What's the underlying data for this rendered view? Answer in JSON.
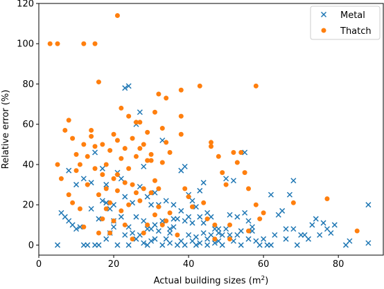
{
  "chart_data": {
    "type": "scatter",
    "xlabel": "Actual building sizes (m$^2$)",
    "xlabel_main": "Actual building sizes (m",
    "xlabel_sup": "2",
    "xlabel_tail": ")",
    "ylabel": "Relative error (%)",
    "xlim": [
      0,
      92
    ],
    "ylim": [
      -5,
      120
    ],
    "xticks": [
      0,
      20,
      40,
      60,
      80
    ],
    "xtick_labels": [
      "0",
      "20",
      "40",
      "60",
      "80"
    ],
    "yticks": [
      0,
      20,
      40,
      60,
      80,
      100,
      120
    ],
    "ytick_labels": [
      "0",
      "20",
      "40",
      "60",
      "80",
      "100",
      "120"
    ],
    "grid": false,
    "legend_position": "top-right",
    "series": [
      {
        "name": "Metal",
        "marker": "x",
        "color": "#1f77b4",
        "points": [
          [
            5,
            0
          ],
          [
            6,
            16
          ],
          [
            7,
            14
          ],
          [
            8,
            12
          ],
          [
            8,
            37
          ],
          [
            9,
            10
          ],
          [
            10,
            30
          ],
          [
            10,
            8
          ],
          [
            11,
            9
          ],
          [
            12,
            33
          ],
          [
            12,
            0
          ],
          [
            13,
            0
          ],
          [
            14,
            18
          ],
          [
            14,
            31
          ],
          [
            15,
            46
          ],
          [
            15,
            0
          ],
          [
            16,
            13
          ],
          [
            16,
            0
          ],
          [
            17,
            22
          ],
          [
            17,
            38
          ],
          [
            18,
            21
          ],
          [
            18,
            30
          ],
          [
            18,
            3
          ],
          [
            19,
            18
          ],
          [
            19,
            6
          ],
          [
            20,
            12
          ],
          [
            20,
            20
          ],
          [
            20,
            9
          ],
          [
            21,
            36
          ],
          [
            21,
            0
          ],
          [
            22,
            33
          ],
          [
            22,
            14
          ],
          [
            23,
            78
          ],
          [
            23,
            24
          ],
          [
            23,
            5
          ],
          [
            24,
            79
          ],
          [
            24,
            9
          ],
          [
            24,
            0
          ],
          [
            25,
            21
          ],
          [
            25,
            6
          ],
          [
            26,
            60
          ],
          [
            26,
            3
          ],
          [
            26,
            14
          ],
          [
            27,
            66
          ],
          [
            27,
            29
          ],
          [
            27,
            5
          ],
          [
            28,
            12
          ],
          [
            28,
            39
          ],
          [
            28,
            1
          ],
          [
            29,
            24
          ],
          [
            29,
            8
          ],
          [
            29,
            0
          ],
          [
            30,
            20
          ],
          [
            30,
            8
          ],
          [
            30,
            2
          ],
          [
            31,
            3
          ],
          [
            31,
            26
          ],
          [
            31,
            10
          ],
          [
            32,
            7
          ],
          [
            32,
            20
          ],
          [
            33,
            52
          ],
          [
            33,
            12
          ],
          [
            33,
            0
          ],
          [
            34,
            22
          ],
          [
            34,
            3
          ],
          [
            35,
            6
          ],
          [
            35,
            8
          ],
          [
            35,
            1
          ],
          [
            36,
            13
          ],
          [
            36,
            20
          ],
          [
            36,
            9
          ],
          [
            37,
            0
          ],
          [
            37,
            13
          ],
          [
            38,
            17
          ],
          [
            38,
            2
          ],
          [
            38,
            37
          ],
          [
            39,
            0
          ],
          [
            39,
            39
          ],
          [
            39,
            12
          ],
          [
            40,
            14
          ],
          [
            40,
            25
          ],
          [
            40,
            5
          ],
          [
            41,
            22
          ],
          [
            41,
            11
          ],
          [
            41,
            2
          ],
          [
            42,
            19
          ],
          [
            42,
            0
          ],
          [
            42,
            4
          ],
          [
            43,
            27
          ],
          [
            43,
            14
          ],
          [
            43,
            1
          ],
          [
            44,
            31
          ],
          [
            44,
            11
          ],
          [
            44,
            6
          ],
          [
            45,
            16
          ],
          [
            45,
            3
          ],
          [
            45,
            0
          ],
          [
            46,
            14
          ],
          [
            46,
            5
          ],
          [
            47,
            8
          ],
          [
            47,
            1
          ],
          [
            48,
            8
          ],
          [
            48,
            2
          ],
          [
            48,
            6
          ],
          [
            49,
            5
          ],
          [
            49,
            0
          ],
          [
            50,
            33
          ],
          [
            50,
            8
          ],
          [
            51,
            15
          ],
          [
            51,
            5
          ],
          [
            52,
            32
          ],
          [
            52,
            2
          ],
          [
            53,
            14
          ],
          [
            53,
            5
          ],
          [
            54,
            7
          ],
          [
            54,
            0
          ],
          [
            55,
            16
          ],
          [
            55,
            46
          ],
          [
            56,
            12
          ],
          [
            56,
            3
          ],
          [
            57,
            7
          ],
          [
            57,
            9
          ],
          [
            58,
            2
          ],
          [
            59,
            0
          ],
          [
            60,
            3
          ],
          [
            61,
            0
          ],
          [
            62,
            0
          ],
          [
            62,
            25
          ],
          [
            63,
            5
          ],
          [
            64,
            15
          ],
          [
            65,
            17
          ],
          [
            66,
            8
          ],
          [
            66,
            3
          ],
          [
            67,
            25
          ],
          [
            68,
            32
          ],
          [
            68,
            8
          ],
          [
            69,
            0
          ],
          [
            70,
            5
          ],
          [
            71,
            5
          ],
          [
            72,
            3
          ],
          [
            73,
            10
          ],
          [
            74,
            13
          ],
          [
            75,
            5
          ],
          [
            76,
            11
          ],
          [
            77,
            8
          ],
          [
            78,
            6
          ],
          [
            79,
            10
          ],
          [
            82,
            0
          ],
          [
            83,
            2
          ],
          [
            88,
            20
          ],
          [
            88,
            1
          ]
        ]
      },
      {
        "name": "Thatch",
        "marker": "o",
        "color": "#ff7f0e",
        "points": [
          [
            3,
            100
          ],
          [
            5,
            100
          ],
          [
            12,
            100
          ],
          [
            15,
            100
          ],
          [
            21,
            114
          ],
          [
            5,
            40
          ],
          [
            6,
            33
          ],
          [
            7,
            57
          ],
          [
            8,
            62
          ],
          [
            8,
            25
          ],
          [
            9,
            53
          ],
          [
            9,
            21
          ],
          [
            10,
            37
          ],
          [
            10,
            45
          ],
          [
            11,
            40
          ],
          [
            11,
            18
          ],
          [
            12,
            50
          ],
          [
            12,
            9
          ],
          [
            13,
            44
          ],
          [
            13,
            30
          ],
          [
            14,
            57
          ],
          [
            14,
            54
          ],
          [
            15,
            49
          ],
          [
            15,
            38
          ],
          [
            16,
            81
          ],
          [
            16,
            25
          ],
          [
            16,
            6
          ],
          [
            17,
            35
          ],
          [
            17,
            50
          ],
          [
            17,
            13
          ],
          [
            18,
            28
          ],
          [
            18,
            40
          ],
          [
            18,
            18
          ],
          [
            19,
            47
          ],
          [
            19,
            21
          ],
          [
            19,
            6
          ],
          [
            20,
            33
          ],
          [
            20,
            55
          ],
          [
            20,
            12
          ],
          [
            21,
            35
          ],
          [
            21,
            52
          ],
          [
            21,
            27
          ],
          [
            22,
            68
          ],
          [
            22,
            43
          ],
          [
            22,
            17
          ],
          [
            23,
            31
          ],
          [
            23,
            48
          ],
          [
            23,
            10
          ],
          [
            24,
            64
          ],
          [
            24,
            38
          ],
          [
            24,
            20
          ],
          [
            25,
            53
          ],
          [
            25,
            30
          ],
          [
            25,
            3
          ],
          [
            26,
            61
          ],
          [
            26,
            44
          ],
          [
            26,
            26
          ],
          [
            27,
            61
          ],
          [
            27,
            48
          ],
          [
            27,
            22
          ],
          [
            28,
            50
          ],
          [
            28,
            28
          ],
          [
            28,
            6
          ],
          [
            29,
            56
          ],
          [
            29,
            42
          ],
          [
            29,
            10
          ],
          [
            30,
            42
          ],
          [
            30,
            26
          ],
          [
            30,
            45
          ],
          [
            31,
            66
          ],
          [
            31,
            32
          ],
          [
            31,
            15
          ],
          [
            32,
            75
          ],
          [
            32,
            28
          ],
          [
            32,
            19
          ],
          [
            33,
            58
          ],
          [
            33,
            41
          ],
          [
            33,
            10
          ],
          [
            34,
            73
          ],
          [
            34,
            51
          ],
          [
            34,
            12
          ],
          [
            35,
            46
          ],
          [
            35,
            16
          ],
          [
            37,
            5
          ],
          [
            38,
            64
          ],
          [
            38,
            77
          ],
          [
            38,
            55
          ],
          [
            39,
            28
          ],
          [
            40,
            24
          ],
          [
            41,
            19
          ],
          [
            43,
            79
          ],
          [
            44,
            21
          ],
          [
            45,
            13
          ],
          [
            46,
            51
          ],
          [
            46,
            49
          ],
          [
            47,
            10
          ],
          [
            47,
            3
          ],
          [
            48,
            44
          ],
          [
            49,
            36
          ],
          [
            50,
            30
          ],
          [
            51,
            3
          ],
          [
            51,
            10
          ],
          [
            52,
            46
          ],
          [
            53,
            41
          ],
          [
            54,
            46
          ],
          [
            55,
            36
          ],
          [
            56,
            28
          ],
          [
            56,
            7
          ],
          [
            58,
            79
          ],
          [
            58,
            20
          ],
          [
            59,
            13
          ],
          [
            60,
            16
          ],
          [
            68,
            21
          ],
          [
            77,
            23
          ],
          [
            85,
            7
          ]
        ]
      }
    ]
  }
}
